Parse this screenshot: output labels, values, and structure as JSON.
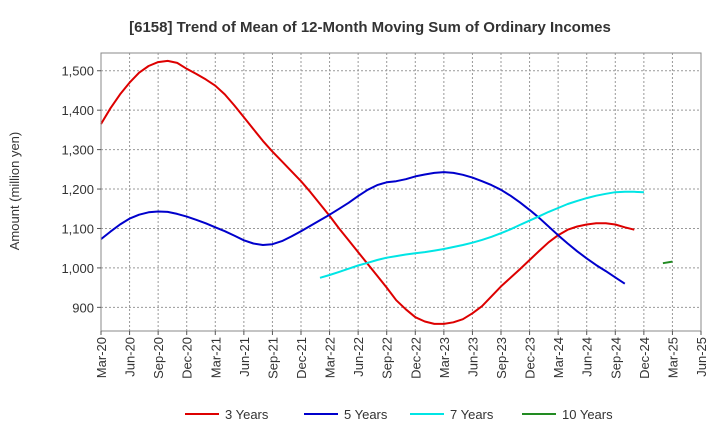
{
  "chart_data": {
    "type": "line",
    "title": "[6158]  Trend of Mean of 12-Month Moving Sum of Ordinary Incomes",
    "xlabel": "",
    "ylabel": "Amount (million yen)",
    "ylim": [
      840,
      1545
    ],
    "yticks": [
      900,
      1000,
      1100,
      1200,
      1300,
      1400,
      1500
    ],
    "ytick_labels": [
      "900",
      "1,000",
      "1,100",
      "1,200",
      "1,300",
      "1,400",
      "1,500"
    ],
    "x_months": [
      "Mar-20",
      "Apr-20",
      "May-20",
      "Jun-20",
      "Jul-20",
      "Aug-20",
      "Sep-20",
      "Oct-20",
      "Nov-20",
      "Dec-20",
      "Jan-21",
      "Feb-21",
      "Mar-21",
      "Apr-21",
      "May-21",
      "Jun-21",
      "Jul-21",
      "Aug-21",
      "Sep-21",
      "Oct-21",
      "Nov-21",
      "Dec-21",
      "Jan-22",
      "Feb-22",
      "Mar-22",
      "Apr-22",
      "May-22",
      "Jun-22",
      "Jul-22",
      "Aug-22",
      "Sep-22",
      "Oct-22",
      "Nov-22",
      "Dec-22",
      "Jan-23",
      "Feb-23",
      "Mar-23",
      "Apr-23",
      "May-23",
      "Jun-23",
      "Jul-23",
      "Aug-23",
      "Sep-23",
      "Oct-23",
      "Nov-23",
      "Dec-23",
      "Jan-24",
      "Feb-24",
      "Mar-24",
      "Apr-24",
      "May-24",
      "Jun-24",
      "Jul-24",
      "Aug-24",
      "Sep-24",
      "Oct-24",
      "Nov-24",
      "Dec-24",
      "Jan-25",
      "Feb-25",
      "Mar-25",
      "Apr-25",
      "May-25",
      "Jun-25"
    ],
    "xticks": [
      "Mar-20",
      "Jun-20",
      "Sep-20",
      "Dec-20",
      "Mar-21",
      "Jun-21",
      "Sep-21",
      "Dec-21",
      "Mar-22",
      "Jun-22",
      "Sep-22",
      "Dec-22",
      "Mar-23",
      "Jun-23",
      "Sep-23",
      "Dec-23",
      "Mar-24",
      "Jun-24",
      "Sep-24",
      "Dec-24",
      "Mar-25",
      "Jun-25"
    ],
    "grid": true,
    "legend_position": "bottom",
    "series": [
      {
        "name": "3 Years",
        "color": "#dd0000",
        "start": "Mar-20",
        "values": [
          1365,
          1405,
          1440,
          1470,
          1495,
          1512,
          1522,
          1525,
          1520,
          1505,
          1492,
          1478,
          1462,
          1440,
          1412,
          1382,
          1352,
          1322,
          1295,
          1270,
          1245,
          1220,
          1192,
          1162,
          1132,
          1100,
          1070,
          1040,
          1010,
          980,
          950,
          918,
          895,
          875,
          864,
          858,
          858,
          862,
          870,
          885,
          903,
          928,
          953,
          975,
          997,
          1020,
          1043,
          1065,
          1083,
          1097,
          1105,
          1110,
          1113,
          1113,
          1110,
          1103,
          1097
        ]
      },
      {
        "name": "5 Years",
        "color": "#0000cc",
        "start": "Mar-20",
        "values": [
          1073,
          1092,
          1110,
          1125,
          1135,
          1141,
          1143,
          1142,
          1137,
          1130,
          1122,
          1113,
          1103,
          1093,
          1082,
          1070,
          1062,
          1058,
          1060,
          1068,
          1080,
          1093,
          1107,
          1121,
          1135,
          1150,
          1165,
          1182,
          1198,
          1210,
          1217,
          1220,
          1225,
          1232,
          1237,
          1241,
          1243,
          1241,
          1236,
          1229,
          1220,
          1210,
          1198,
          1183,
          1166,
          1147,
          1127,
          1105,
          1083,
          1062,
          1042,
          1024,
          1007,
          992,
          976,
          960
        ]
      },
      {
        "name": "7 Years",
        "color": "#00e5e5",
        "start": "Feb-22",
        "values": [
          975,
          982,
          990,
          998,
          1006,
          1013,
          1020,
          1026,
          1030,
          1034,
          1037,
          1040,
          1044,
          1048,
          1053,
          1058,
          1064,
          1071,
          1079,
          1088,
          1098,
          1109,
          1120,
          1131,
          1142,
          1152,
          1162,
          1170,
          1177,
          1183,
          1188,
          1192,
          1193,
          1193,
          1192
        ]
      },
      {
        "name": "10 Years",
        "color": "#228b22",
        "start": "Feb-25",
        "values": [
          1012,
          1016
        ]
      }
    ]
  }
}
